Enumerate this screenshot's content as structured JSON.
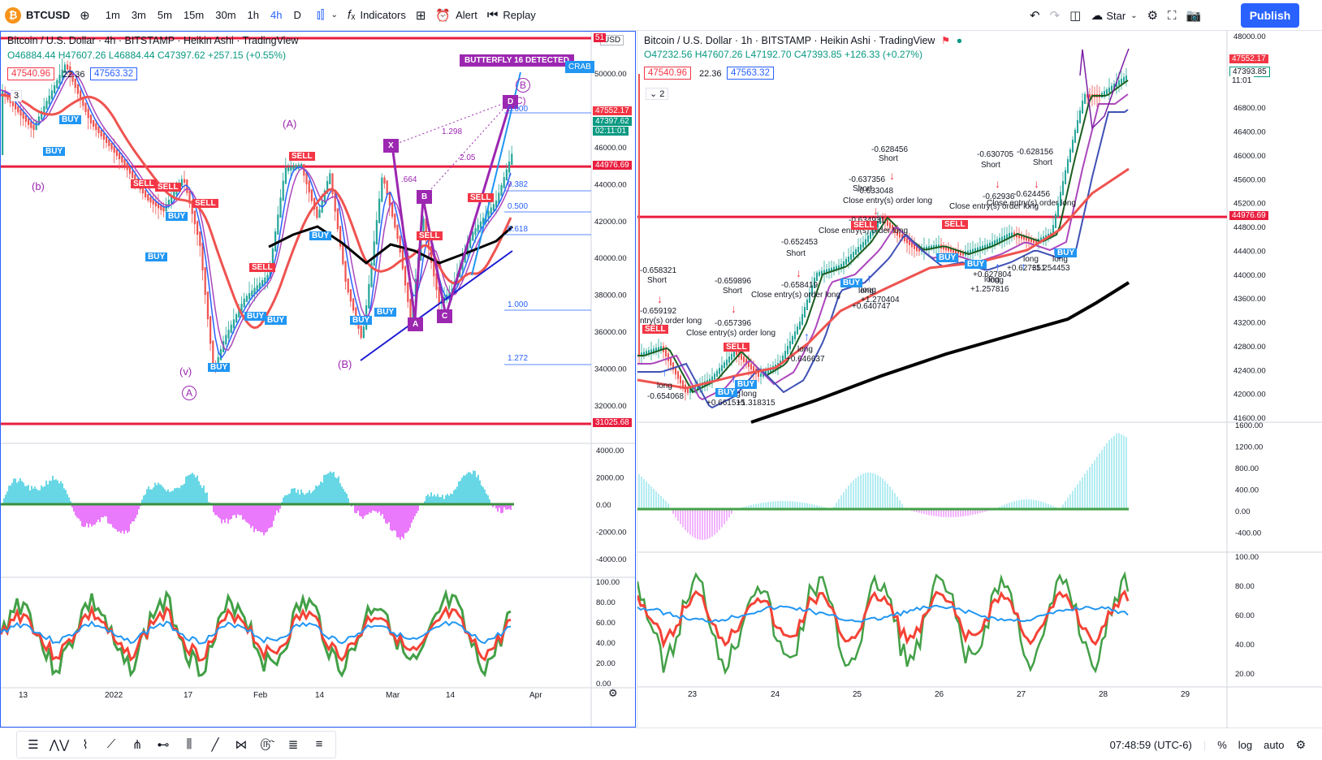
{
  "toolbar": {
    "symbol": "BTCUSD",
    "logo_glyph": "₿",
    "timeframes": [
      "1m",
      "3m",
      "5m",
      "15m",
      "30m",
      "1h",
      "4h",
      "D"
    ],
    "active_timeframe": "4h",
    "indicators_label": "Indicators",
    "alert_label": "Alert",
    "replay_label": "Replay",
    "star_label": "Star",
    "publish_label": "Publish"
  },
  "left_chart": {
    "title": "Bitcoin / U.S. Dollar · 4h · BITSTAMP · Heikin Ashi · TradingView",
    "ohlc": "O46884.44 H47607.26 L46884.44 C47397.62 +257.15 (+0.55%)",
    "bid": "47540.96",
    "spread": "22.36",
    "ask": "47563.32",
    "currency": "USD",
    "collapse_count": "3",
    "price_labels": [
      "50000.00",
      "48000.00",
      "46000.00",
      "44000.00",
      "42000.00",
      "40000.00",
      "38000.00",
      "36000.00",
      "34000.00",
      "32000.00"
    ],
    "price_tags": {
      "top": "51",
      "current": "47552.17",
      "current_close": "47397.62",
      "countdown": "02:11:01",
      "resistance": "44976.69",
      "support": "31025.68"
    },
    "osc_labels": [
      "4000.00",
      "2000.00",
      "0.00",
      "-2000.00",
      "-4000.00"
    ],
    "rsi_labels": [
      "100.00",
      "80.00",
      "60.00",
      "40.00",
      "20.00",
      "0.00"
    ],
    "time_labels": [
      "13",
      "2022",
      "17",
      "Feb",
      "14",
      "Mar",
      "14",
      "Apr"
    ],
    "annotations": {
      "butterfly": "BUTTERFLY 16 DETECTED",
      "crab": "CRAB",
      "wave_A_upper": "(A)",
      "wave_B": "(B)",
      "wave_b": "(b)",
      "wave_v": "(v)",
      "wave_A_circle": "A",
      "wave_B_circle": "B",
      "wave_C": "C)",
      "pt_X": "X",
      "pt_A": "A",
      "pt_B": "B",
      "pt_C": "C",
      "pt_D": "D",
      "ratio_1298": "1.298",
      "ratio_205": "2.05",
      "ratio_664": ".664",
      "fib_000": "0.000",
      "fib_0382": "0.382",
      "fib_0500": "0.500",
      "fib_0618": "0.618",
      "fib_1000": "1.000",
      "fib_1272": "1.272"
    },
    "signals_buy": [
      "BUY",
      "BUY",
      "BUY",
      "BUY",
      "BUY",
      "BUY",
      "BUY",
      "BUY",
      "BUY",
      "BUY"
    ],
    "signals_sell": [
      "SELL",
      "SELL",
      "SELL",
      "SELL",
      "SELL",
      "SELL",
      "SELL"
    ]
  },
  "right_chart": {
    "title": "Bitcoin / U.S. Dollar · 1h · BITSTAMP · Heikin Ashi · TradingView",
    "ohlc": "O47232.56 H47607.26 L47192.70 C47393.85 +126.33 (+0.27%)",
    "bid": "47540.96",
    "spread": "22.36",
    "ask": "47563.32",
    "collapse_count": "2",
    "price_labels": [
      "48000.00",
      "47600.00",
      "46800.00",
      "46400.00",
      "46000.00",
      "45600.00",
      "45200.00",
      "44800.00",
      "44400.00",
      "44000.00",
      "43600.00",
      "43200.00",
      "42800.00",
      "42400.00",
      "42000.00",
      "41600.00"
    ],
    "price_tags": {
      "current": "47552.17",
      "current_close": "47393.85",
      "countdown": "11:01",
      "resistance": "44976.69"
    },
    "osc_labels": [
      "1600.00",
      "1200.00",
      "800.00",
      "400.00",
      "0.00",
      "-400.00"
    ],
    "rsi_labels": [
      "100.00",
      "80.00",
      "60.00",
      "40.00",
      "20.00"
    ],
    "time_labels": [
      "23",
      "24",
      "25",
      "26",
      "27",
      "28",
      "29"
    ],
    "trade_notes": [
      {
        "text": "-0.658321"
      },
      {
        "text": "Short"
      },
      {
        "text": "-0.659192"
      },
      {
        "text": "ntry(s) order long"
      },
      {
        "text": "long"
      },
      {
        "text": "-0.654068"
      },
      {
        "text": "-0.659896"
      },
      {
        "text": "Short"
      },
      {
        "text": "-0.657396"
      },
      {
        "text": "Close entry(s) order long"
      },
      {
        "text": "long"
      },
      {
        "text": "+0.661515"
      },
      {
        "text": "long"
      },
      {
        "text": "+1.318315"
      },
      {
        "text": "-0.652453"
      },
      {
        "text": "Short"
      },
      {
        "text": "-0.658419"
      },
      {
        "text": "Close entry(s) order long"
      },
      {
        "text": "long"
      },
      {
        "text": "+0.646637"
      },
      {
        "text": "-0.637356"
      },
      {
        "text": "Short"
      },
      {
        "text": "-0.628456"
      },
      {
        "text": "Short"
      },
      {
        "text": "-0.633048"
      },
      {
        "text": "Close entry(s) order long"
      },
      {
        "text": "-0.634931"
      },
      {
        "text": "Close entry(s) order long"
      },
      {
        "text": "long"
      },
      {
        "text": "+0.640747"
      },
      {
        "text": "long"
      },
      {
        "text": "+1.270404"
      },
      {
        "text": "-0.630705"
      },
      {
        "text": "Short"
      },
      {
        "text": "-0.628156"
      },
      {
        "text": "Short"
      },
      {
        "text": "-0.62936"
      },
      {
        "text": "Close entry(s) order long"
      },
      {
        "text": "-0.624456"
      },
      {
        "text": "Close entry(s) order long"
      },
      {
        "text": "long"
      },
      {
        "text": "+0.627804"
      },
      {
        "text": "long"
      },
      {
        "text": "+1.257816"
      },
      {
        "text": "long"
      },
      {
        "text": "+0.627351"
      },
      {
        "text": "long"
      },
      {
        "text": "+1.254453"
      }
    ],
    "signals": [
      "SELL",
      "SELL",
      "SELL",
      "SELL",
      "BUY",
      "BUY",
      "BUY",
      "BUY",
      "BUY",
      "BUY"
    ]
  },
  "bottombar": {
    "time": "07:48:59 (UTC-6)",
    "percent_label": "%",
    "log_label": "log",
    "auto_label": "auto"
  },
  "colors": {
    "accent": "#2962ff",
    "up": "#089981",
    "down": "#f23645",
    "support_line": "#e91e3f",
    "pattern": "#9c27b0"
  }
}
